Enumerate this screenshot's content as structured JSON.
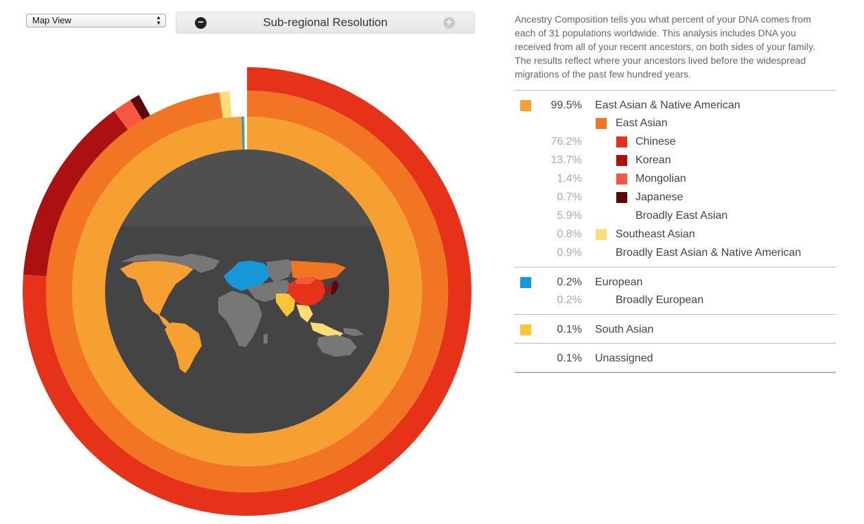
{
  "toolbar": {
    "view_select": {
      "selected": "Map View",
      "options": [
        "Map View"
      ]
    },
    "resolution": {
      "label": "Sub-regional Resolution",
      "decrease_icon": "minus-circle-icon",
      "increase_icon": "plus-circle-icon"
    }
  },
  "description": "Ancestry Composition tells you what percent of your DNA comes from each of 31 populations worldwide. This analysis includes DNA you received from all of your recent ancestors, on both sides of your family. The results reflect where your ancestors lived before the widespread migrations of the past few hundred years.",
  "legend": [
    {
      "rows": [
        {
          "level": 0,
          "pct": "99.5%",
          "name": "East Asian & Native American",
          "color": "#f5a031"
        },
        {
          "level": 1,
          "pct": "",
          "name": "East Asian",
          "color": "#f27524"
        },
        {
          "level": 2,
          "pct": "76.2%",
          "name": "Chinese",
          "color": "#e53218"
        },
        {
          "level": 2,
          "pct": "13.7%",
          "name": "Korean",
          "color": "#ad1010"
        },
        {
          "level": 2,
          "pct": "1.4%",
          "name": "Mongolian",
          "color": "#f5583e"
        },
        {
          "level": 2,
          "pct": "0.7%",
          "name": "Japanese",
          "color": "#5a0808"
        },
        {
          "level": 2,
          "pct": "5.9%",
          "name": "Broadly East Asian",
          "color": ""
        },
        {
          "level": 1,
          "pct": "0.8%",
          "name": "Southeast Asian",
          "color": "#fedc78"
        },
        {
          "level": 1,
          "pct": "0.9%",
          "name": "Broadly East Asian & Native American",
          "color": ""
        }
      ]
    },
    {
      "rows": [
        {
          "level": 0,
          "pct": "0.2%",
          "name": "European",
          "color": "#1698d8"
        },
        {
          "level": 1,
          "pct": "0.2%",
          "name": "Broadly European",
          "color": ""
        }
      ]
    },
    {
      "rows": [
        {
          "level": 0,
          "pct": "0.1%",
          "name": "South Asian",
          "color": "#fcc437"
        }
      ]
    },
    {
      "rows": [
        {
          "level": 0,
          "pct": "0.1%",
          "name": "Unassigned",
          "color": ""
        }
      ]
    }
  ],
  "colors": {
    "map_background": "#444444",
    "land_default": "#777777",
    "east_asian_native_american": "#f5a031",
    "east_asian": "#f27524",
    "chinese": "#e53218",
    "korean": "#ad1010",
    "mongolian": "#f5583e",
    "japanese": "#5a0808",
    "southeast_asian": "#fedc78",
    "european": "#1698d8",
    "south_asian": "#fcc437"
  },
  "chart_data": {
    "type": "pie",
    "rings": [
      {
        "name": "inner",
        "segments": [
          {
            "label": "East Asian & Native American",
            "value": 99.5,
            "color": "#f5a031"
          },
          {
            "label": "European",
            "value": 0.2,
            "color": "#1698d8"
          },
          {
            "label": "South Asian",
            "value": 0.1,
            "color": "#fcc437"
          },
          {
            "label": "Unassigned",
            "value": 0.1,
            "color": "#ffffff"
          }
        ]
      },
      {
        "name": "middle",
        "segments": [
          {
            "label": "East Asian",
            "value": 97.8,
            "color": "#f27524"
          },
          {
            "label": "Southeast Asian",
            "value": 0.8,
            "color": "#fedc78"
          }
        ]
      },
      {
        "name": "outer",
        "segments": [
          {
            "label": "Chinese",
            "value": 76.2,
            "color": "#e53218"
          },
          {
            "label": "Korean",
            "value": 13.7,
            "color": "#ad1010"
          },
          {
            "label": "Mongolian",
            "value": 1.4,
            "color": "#f5583e"
          },
          {
            "label": "Japanese",
            "value": 0.7,
            "color": "#5a0808"
          }
        ]
      }
    ]
  }
}
